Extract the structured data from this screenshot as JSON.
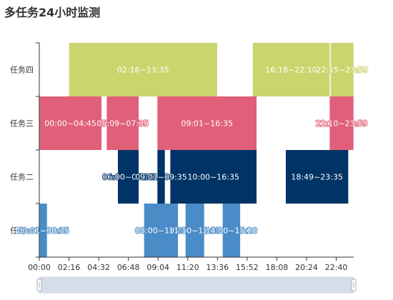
{
  "title": "多任务24小时监测",
  "chart_data": {
    "type": "bar",
    "subtype": "timeline",
    "title": "多任务24小时监测",
    "categories": [
      "任务四",
      "任务三",
      "任务二",
      "任务一"
    ],
    "x_ticks": [
      "00:00",
      "02:16",
      "04:32",
      "06:48",
      "09:04",
      "11:20",
      "13:36",
      "15:52",
      "18:08",
      "20:24",
      "22:40"
    ],
    "x_range_minutes": [
      0,
      1440
    ],
    "grid": false,
    "tasks": [
      {
        "category": "任务四",
        "start": "02:16",
        "end": "13:35",
        "label": "02:16~13:35",
        "color": "#cbd56e"
      },
      {
        "category": "任务四",
        "start": "16:18",
        "end": "22:10",
        "label": "16:18~22:10",
        "color": "#cbd56e"
      },
      {
        "category": "任务四",
        "start": "22:15",
        "end": "23:59",
        "label": "22:15~23:59",
        "color": "#cbd56e"
      },
      {
        "category": "任务三",
        "start": "00:00",
        "end": "04:45",
        "label": "00:00~04:45",
        "color": "#e0607a"
      },
      {
        "category": "任务三",
        "start": "05:09",
        "end": "07:35",
        "label": "05:09~07:35",
        "color": "#e0607a"
      },
      {
        "category": "任务三",
        "start": "09:01",
        "end": "16:35",
        "label": "09:01~16:35",
        "color": "#e0607a"
      },
      {
        "category": "任务三",
        "start": "22:10",
        "end": "23:59",
        "label": "22:10~23:59",
        "color": "#e0607a"
      },
      {
        "category": "任务二",
        "start": "06:00",
        "end": "07:35",
        "label": "06:00~07:35",
        "color": "#003366"
      },
      {
        "category": "任务二",
        "start": "09:01",
        "end": "09:35",
        "label": "09:01~09:35",
        "color": "#003366"
      },
      {
        "category": "任务二",
        "start": "10:00",
        "end": "16:35",
        "label": "10:00~16:35",
        "color": "#003366"
      },
      {
        "category": "任务二",
        "start": "18:49",
        "end": "23:35",
        "label": "18:49~23:35",
        "color": "#003366"
      },
      {
        "category": "任务一",
        "start": "00:01",
        "end": "00:35",
        "label": "00:01~00:35",
        "color": "#4a8cc8"
      },
      {
        "category": "任务一",
        "start": "08:00",
        "end": "10:35",
        "label": "08:00~10:35",
        "color": "#4a8cc8"
      },
      {
        "category": "任务一",
        "start": "11:10",
        "end": "12:35",
        "label": "11:10~12:35",
        "color": "#4a8cc8"
      },
      {
        "category": "任务一",
        "start": "14:00",
        "end": "15:20",
        "label": "14:00~15:20",
        "color": "#4a8cc8"
      }
    ],
    "data_zoom": {
      "start_percent": 0,
      "end_percent": 100
    }
  }
}
